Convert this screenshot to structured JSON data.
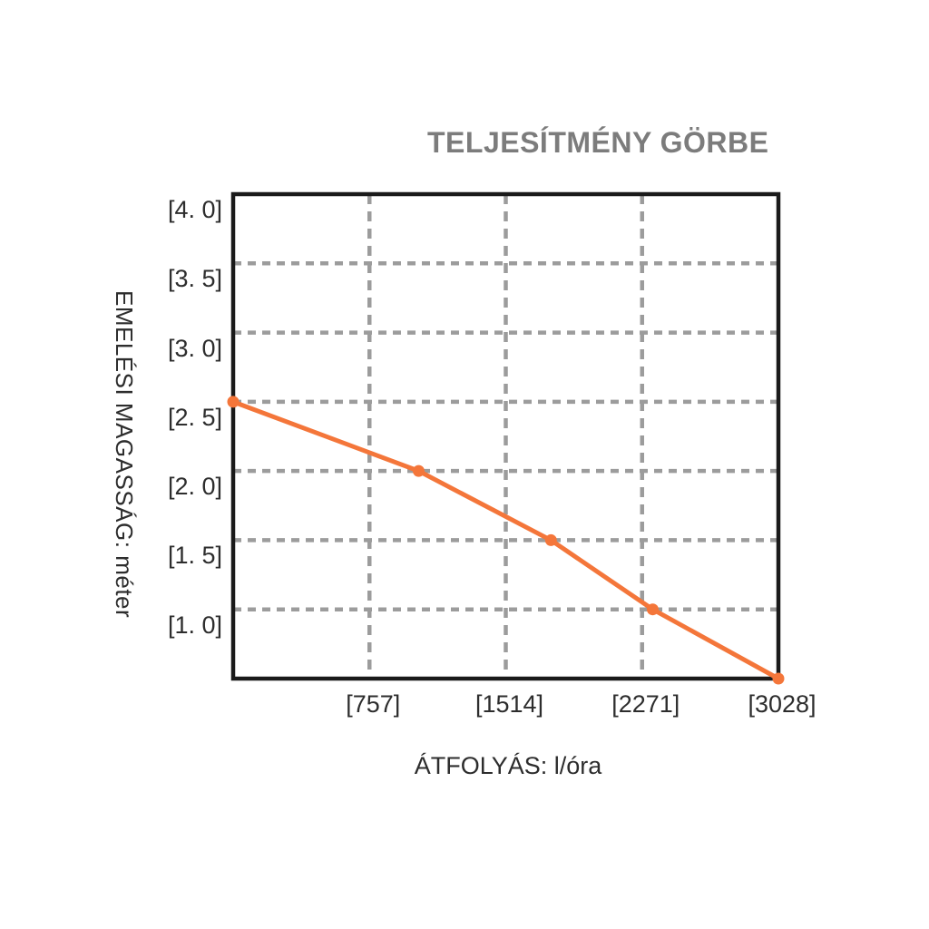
{
  "title": "TELJESÍTMÉNY GÖRBE",
  "colors": {
    "curve": "#F4763A",
    "grid": "#9C9C9C",
    "frame": "#1A1A1A",
    "title_text": "#7C7C7C",
    "label_text": "#2D2D2D",
    "background": "#FFFFFF"
  },
  "chart_data": {
    "type": "line",
    "title": "TELJESÍTMÉNY GÖRBE",
    "xlabel": "ÁTFOLYÁS: l/óra",
    "ylabel": "EMELÉSI MAGASSÁG: méter",
    "x": [
      0,
      1030,
      1765,
      2330,
      3028
    ],
    "y": [
      2.5,
      2.0,
      1.5,
      1.0,
      0.5
    ],
    "xlim": [
      0,
      3028
    ],
    "ylim": [
      0.5,
      4.0
    ],
    "x_ticks": [
      757,
      1514,
      2271,
      3028
    ],
    "x_tick_labels": [
      "[757]",
      "[1514]",
      "[2271]",
      "[3028]"
    ],
    "y_ticks": [
      4.0,
      3.5,
      3.0,
      2.5,
      2.0,
      1.5,
      1.0
    ],
    "y_tick_labels": [
      "[4. 0]",
      "[3. 5]",
      "[3. 0]",
      "[2. 5]",
      "[2. 0]",
      "[1. 5]",
      "[1. 0]"
    ],
    "grid": "dashed",
    "legend": "none",
    "line_color": "#F4763A",
    "marker": "circle"
  }
}
